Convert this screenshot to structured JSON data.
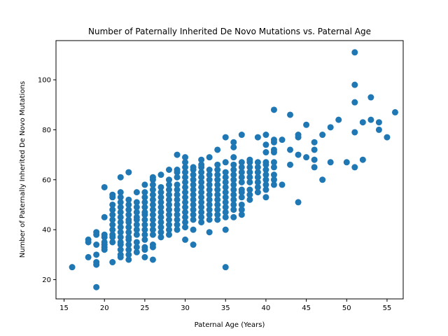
{
  "chart_data": {
    "type": "scatter",
    "title": "Number of Paternally Inherited De Novo Mutations vs. Paternal Age",
    "xlabel": "Paternal Age (Years)",
    "ylabel": "Number of Paternally Inherited De Novo Mutations",
    "xlim": [
      14.0,
      57.0
    ],
    "ylim": [
      12.3,
      115.7
    ],
    "xticks": [
      15,
      20,
      25,
      30,
      35,
      40,
      45,
      50,
      55
    ],
    "yticks": [
      20,
      40,
      60,
      80,
      100
    ],
    "grid": false,
    "point_color": "#1f77b4",
    "points": [
      [
        16,
        25
      ],
      [
        18,
        35
      ],
      [
        18,
        36
      ],
      [
        18,
        29
      ],
      [
        19,
        17
      ],
      [
        19,
        26
      ],
      [
        19,
        27
      ],
      [
        19,
        30
      ],
      [
        19,
        34
      ],
      [
        19,
        38
      ],
      [
        19,
        39
      ],
      [
        20,
        32
      ],
      [
        20,
        33
      ],
      [
        20,
        34
      ],
      [
        20,
        35
      ],
      [
        20,
        37
      ],
      [
        20,
        38
      ],
      [
        20,
        45
      ],
      [
        20,
        57
      ],
      [
        21,
        27
      ],
      [
        21,
        35
      ],
      [
        21,
        37
      ],
      [
        21,
        38
      ],
      [
        21,
        40
      ],
      [
        21,
        42
      ],
      [
        21,
        44
      ],
      [
        21,
        46
      ],
      [
        21,
        48
      ],
      [
        21,
        50
      ],
      [
        21,
        53
      ],
      [
        21,
        54
      ],
      [
        22,
        29
      ],
      [
        22,
        30
      ],
      [
        22,
        32
      ],
      [
        22,
        34
      ],
      [
        22,
        35
      ],
      [
        22,
        37
      ],
      [
        22,
        39
      ],
      [
        22,
        41
      ],
      [
        22,
        43
      ],
      [
        22,
        45
      ],
      [
        22,
        47
      ],
      [
        22,
        49
      ],
      [
        22,
        51
      ],
      [
        22,
        53
      ],
      [
        22,
        55
      ],
      [
        22,
        61
      ],
      [
        23,
        28
      ],
      [
        23,
        30
      ],
      [
        23,
        32
      ],
      [
        23,
        34
      ],
      [
        23,
        36
      ],
      [
        23,
        37
      ],
      [
        23,
        39
      ],
      [
        23,
        41
      ],
      [
        23,
        43
      ],
      [
        23,
        44
      ],
      [
        23,
        46
      ],
      [
        23,
        48
      ],
      [
        23,
        50
      ],
      [
        23,
        52
      ],
      [
        23,
        63
      ],
      [
        24,
        31
      ],
      [
        24,
        33
      ],
      [
        24,
        35
      ],
      [
        24,
        38
      ],
      [
        24,
        40
      ],
      [
        24,
        42
      ],
      [
        24,
        44
      ],
      [
        24,
        45
      ],
      [
        24,
        47
      ],
      [
        24,
        49
      ],
      [
        24,
        51
      ],
      [
        24,
        55
      ],
      [
        25,
        29
      ],
      [
        25,
        32
      ],
      [
        25,
        33
      ],
      [
        25,
        36
      ],
      [
        25,
        38
      ],
      [
        25,
        40
      ],
      [
        25,
        42
      ],
      [
        25,
        44
      ],
      [
        25,
        46
      ],
      [
        25,
        47
      ],
      [
        25,
        49
      ],
      [
        25,
        51
      ],
      [
        25,
        53
      ],
      [
        25,
        55
      ],
      [
        25,
        58
      ],
      [
        26,
        28
      ],
      [
        26,
        33
      ],
      [
        26,
        34
      ],
      [
        26,
        38
      ],
      [
        26,
        40
      ],
      [
        26,
        42
      ],
      [
        26,
        44
      ],
      [
        26,
        46
      ],
      [
        26,
        48
      ],
      [
        26,
        50
      ],
      [
        26,
        52
      ],
      [
        26,
        54
      ],
      [
        26,
        56
      ],
      [
        26,
        58
      ],
      [
        26,
        60
      ],
      [
        26,
        61
      ],
      [
        27,
        37
      ],
      [
        27,
        39
      ],
      [
        27,
        41
      ],
      [
        27,
        43
      ],
      [
        27,
        45
      ],
      [
        27,
        47
      ],
      [
        27,
        49
      ],
      [
        27,
        51
      ],
      [
        27,
        53
      ],
      [
        27,
        55
      ],
      [
        27,
        57
      ],
      [
        27,
        62
      ],
      [
        28,
        38
      ],
      [
        28,
        40
      ],
      [
        28,
        42
      ],
      [
        28,
        44
      ],
      [
        28,
        46
      ],
      [
        28,
        48
      ],
      [
        28,
        50
      ],
      [
        28,
        52
      ],
      [
        28,
        54
      ],
      [
        28,
        56
      ],
      [
        28,
        58
      ],
      [
        28,
        60
      ],
      [
        28,
        64
      ],
      [
        29,
        40
      ],
      [
        29,
        42
      ],
      [
        29,
        44
      ],
      [
        29,
        46
      ],
      [
        29,
        48
      ],
      [
        29,
        50
      ],
      [
        29,
        52
      ],
      [
        29,
        54
      ],
      [
        29,
        56
      ],
      [
        29,
        58
      ],
      [
        29,
        61
      ],
      [
        29,
        63
      ],
      [
        29,
        64
      ],
      [
        29,
        70
      ],
      [
        30,
        36
      ],
      [
        30,
        41
      ],
      [
        30,
        43
      ],
      [
        30,
        45
      ],
      [
        30,
        47
      ],
      [
        30,
        49
      ],
      [
        30,
        51
      ],
      [
        30,
        53
      ],
      [
        30,
        55
      ],
      [
        30,
        57
      ],
      [
        30,
        59
      ],
      [
        30,
        61
      ],
      [
        30,
        63
      ],
      [
        30,
        65
      ],
      [
        30,
        67
      ],
      [
        30,
        69
      ],
      [
        31,
        34
      ],
      [
        31,
        40
      ],
      [
        31,
        44
      ],
      [
        31,
        46
      ],
      [
        31,
        48
      ],
      [
        31,
        50
      ],
      [
        31,
        52
      ],
      [
        31,
        54
      ],
      [
        31,
        56
      ],
      [
        31,
        58
      ],
      [
        31,
        60
      ],
      [
        31,
        62
      ],
      [
        31,
        64
      ],
      [
        31,
        65
      ],
      [
        32,
        43
      ],
      [
        32,
        45
      ],
      [
        32,
        47
      ],
      [
        32,
        49
      ],
      [
        32,
        51
      ],
      [
        32,
        53
      ],
      [
        32,
        55
      ],
      [
        32,
        57
      ],
      [
        32,
        59
      ],
      [
        32,
        61
      ],
      [
        32,
        63
      ],
      [
        32,
        65
      ],
      [
        32,
        66
      ],
      [
        32,
        68
      ],
      [
        33,
        39
      ],
      [
        33,
        44
      ],
      [
        33,
        46
      ],
      [
        33,
        48
      ],
      [
        33,
        50
      ],
      [
        33,
        52
      ],
      [
        33,
        54
      ],
      [
        33,
        56
      ],
      [
        33,
        58
      ],
      [
        33,
        60
      ],
      [
        33,
        62
      ],
      [
        33,
        64
      ],
      [
        33,
        69
      ],
      [
        34,
        44
      ],
      [
        34,
        46
      ],
      [
        34,
        48
      ],
      [
        34,
        50
      ],
      [
        34,
        52
      ],
      [
        34,
        54
      ],
      [
        34,
        56
      ],
      [
        34,
        58
      ],
      [
        34,
        60
      ],
      [
        34,
        62
      ],
      [
        34,
        64
      ],
      [
        34,
        66
      ],
      [
        34,
        72
      ],
      [
        35,
        25
      ],
      [
        35,
        40
      ],
      [
        35,
        45
      ],
      [
        35,
        47
      ],
      [
        35,
        49
      ],
      [
        35,
        51
      ],
      [
        35,
        53
      ],
      [
        35,
        55
      ],
      [
        35,
        57
      ],
      [
        35,
        59
      ],
      [
        35,
        61
      ],
      [
        35,
        63
      ],
      [
        35,
        67
      ],
      [
        35,
        77
      ],
      [
        36,
        45
      ],
      [
        36,
        48
      ],
      [
        36,
        50
      ],
      [
        36,
        52
      ],
      [
        36,
        54
      ],
      [
        36,
        56
      ],
      [
        36,
        58
      ],
      [
        36,
        60
      ],
      [
        36,
        62
      ],
      [
        36,
        64
      ],
      [
        36,
        66
      ],
      [
        36,
        69
      ],
      [
        36,
        73
      ],
      [
        36,
        75
      ],
      [
        37,
        46
      ],
      [
        37,
        48
      ],
      [
        37,
        50
      ],
      [
        37,
        53
      ],
      [
        37,
        55
      ],
      [
        37,
        56
      ],
      [
        37,
        59
      ],
      [
        37,
        61
      ],
      [
        37,
        63
      ],
      [
        37,
        65
      ],
      [
        37,
        67
      ],
      [
        37,
        78
      ],
      [
        38,
        52
      ],
      [
        38,
        54
      ],
      [
        38,
        56
      ],
      [
        38,
        59
      ],
      [
        38,
        61
      ],
      [
        38,
        63
      ],
      [
        38,
        65
      ],
      [
        38,
        67
      ],
      [
        38,
        68
      ],
      [
        39,
        55
      ],
      [
        39,
        57
      ],
      [
        39,
        59
      ],
      [
        39,
        61
      ],
      [
        39,
        63
      ],
      [
        39,
        65
      ],
      [
        39,
        67
      ],
      [
        39,
        77
      ],
      [
        40,
        53
      ],
      [
        40,
        56
      ],
      [
        40,
        58
      ],
      [
        40,
        60
      ],
      [
        40,
        62
      ],
      [
        40,
        64
      ],
      [
        40,
        66
      ],
      [
        40,
        67
      ],
      [
        40,
        71
      ],
      [
        40,
        74
      ],
      [
        40,
        78
      ],
      [
        41,
        58
      ],
      [
        41,
        60
      ],
      [
        41,
        62
      ],
      [
        41,
        65
      ],
      [
        41,
        67
      ],
      [
        41,
        71
      ],
      [
        41,
        72
      ],
      [
        41,
        75
      ],
      [
        41,
        76
      ],
      [
        41,
        88
      ],
      [
        42,
        58
      ],
      [
        42,
        76
      ],
      [
        43,
        66
      ],
      [
        43,
        72
      ],
      [
        43,
        86
      ],
      [
        44,
        51
      ],
      [
        44,
        70
      ],
      [
        44,
        77
      ],
      [
        44,
        78
      ],
      [
        45,
        69
      ],
      [
        45,
        82
      ],
      [
        46,
        65
      ],
      [
        46,
        68
      ],
      [
        46,
        72
      ],
      [
        46,
        75
      ],
      [
        47,
        60
      ],
      [
        47,
        78
      ],
      [
        48,
        67
      ],
      [
        48,
        81
      ],
      [
        49,
        84
      ],
      [
        50,
        67
      ],
      [
        51,
        65
      ],
      [
        51,
        79
      ],
      [
        51,
        91
      ],
      [
        51,
        98
      ],
      [
        51,
        111
      ],
      [
        52,
        68
      ],
      [
        52,
        83
      ],
      [
        53,
        84
      ],
      [
        53,
        93
      ],
      [
        54,
        80
      ],
      [
        54,
        83
      ],
      [
        55,
        77
      ],
      [
        56,
        87
      ]
    ]
  }
}
